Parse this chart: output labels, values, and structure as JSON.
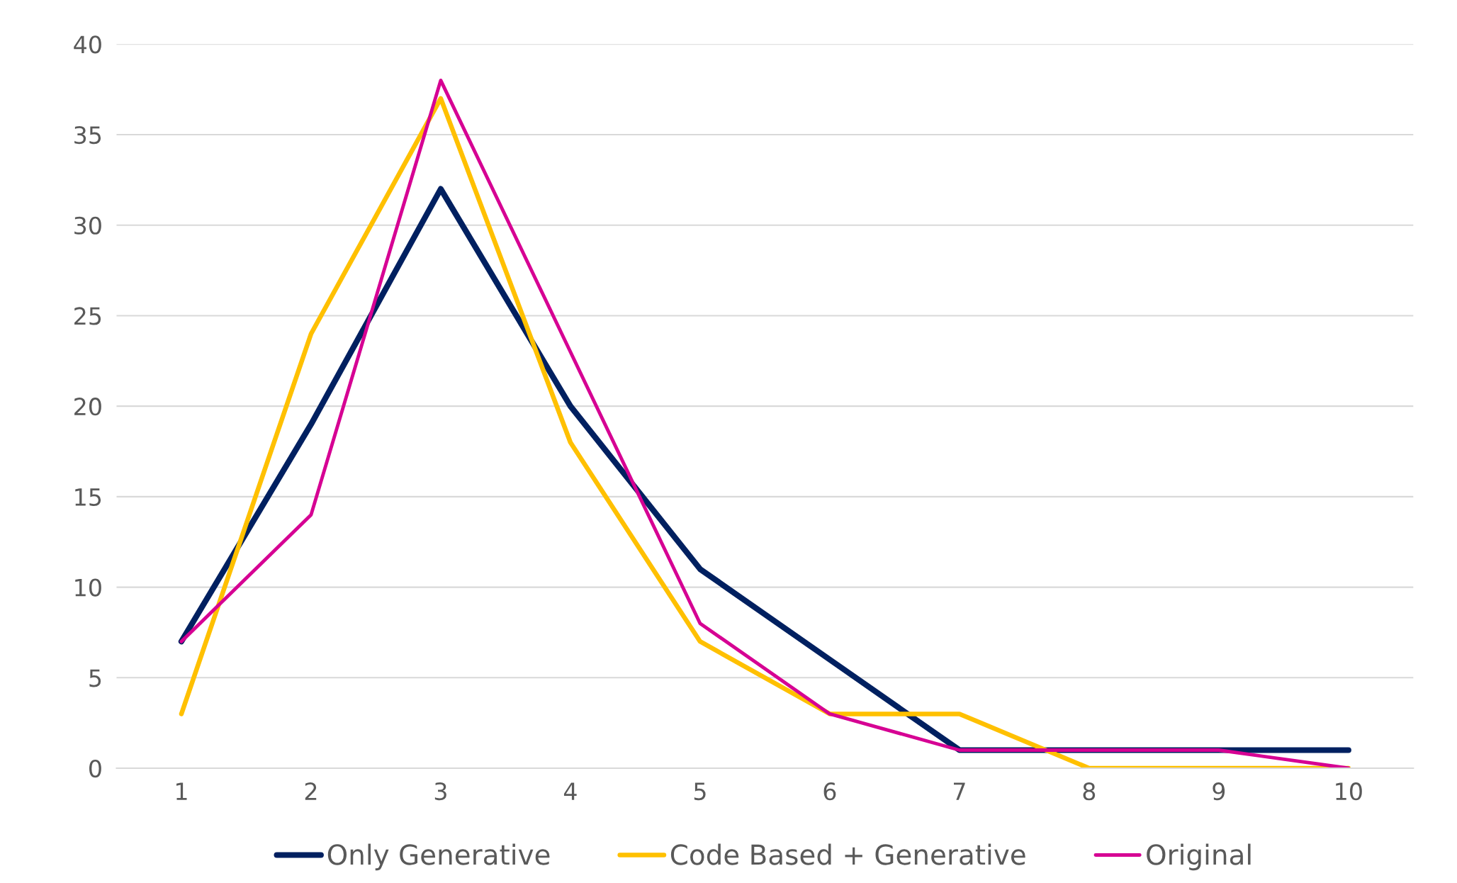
{
  "chart_data": {
    "type": "line",
    "categories": [
      "1",
      "2",
      "3",
      "4",
      "5",
      "6",
      "7",
      "8",
      "9",
      "10"
    ],
    "series": [
      {
        "name": "Only Generative",
        "color": "#002060",
        "values": [
          7,
          19,
          32,
          20,
          11,
          6,
          1,
          1,
          1,
          1
        ]
      },
      {
        "name": "Code Based + Generative",
        "color": "#ffc000",
        "values": [
          3,
          24,
          37,
          18,
          7,
          3,
          3,
          0,
          0,
          0
        ]
      },
      {
        "name": "Original",
        "color": "#d60093",
        "values": [
          7,
          14,
          38,
          23,
          8,
          3,
          1,
          1,
          1,
          0
        ]
      }
    ],
    "ylim": [
      0,
      40
    ],
    "yticks": [
      0,
      5,
      10,
      15,
      20,
      25,
      30,
      35,
      40
    ],
    "grid": "y",
    "legend": "bottom",
    "marker": "none",
    "line_style": "solid"
  }
}
